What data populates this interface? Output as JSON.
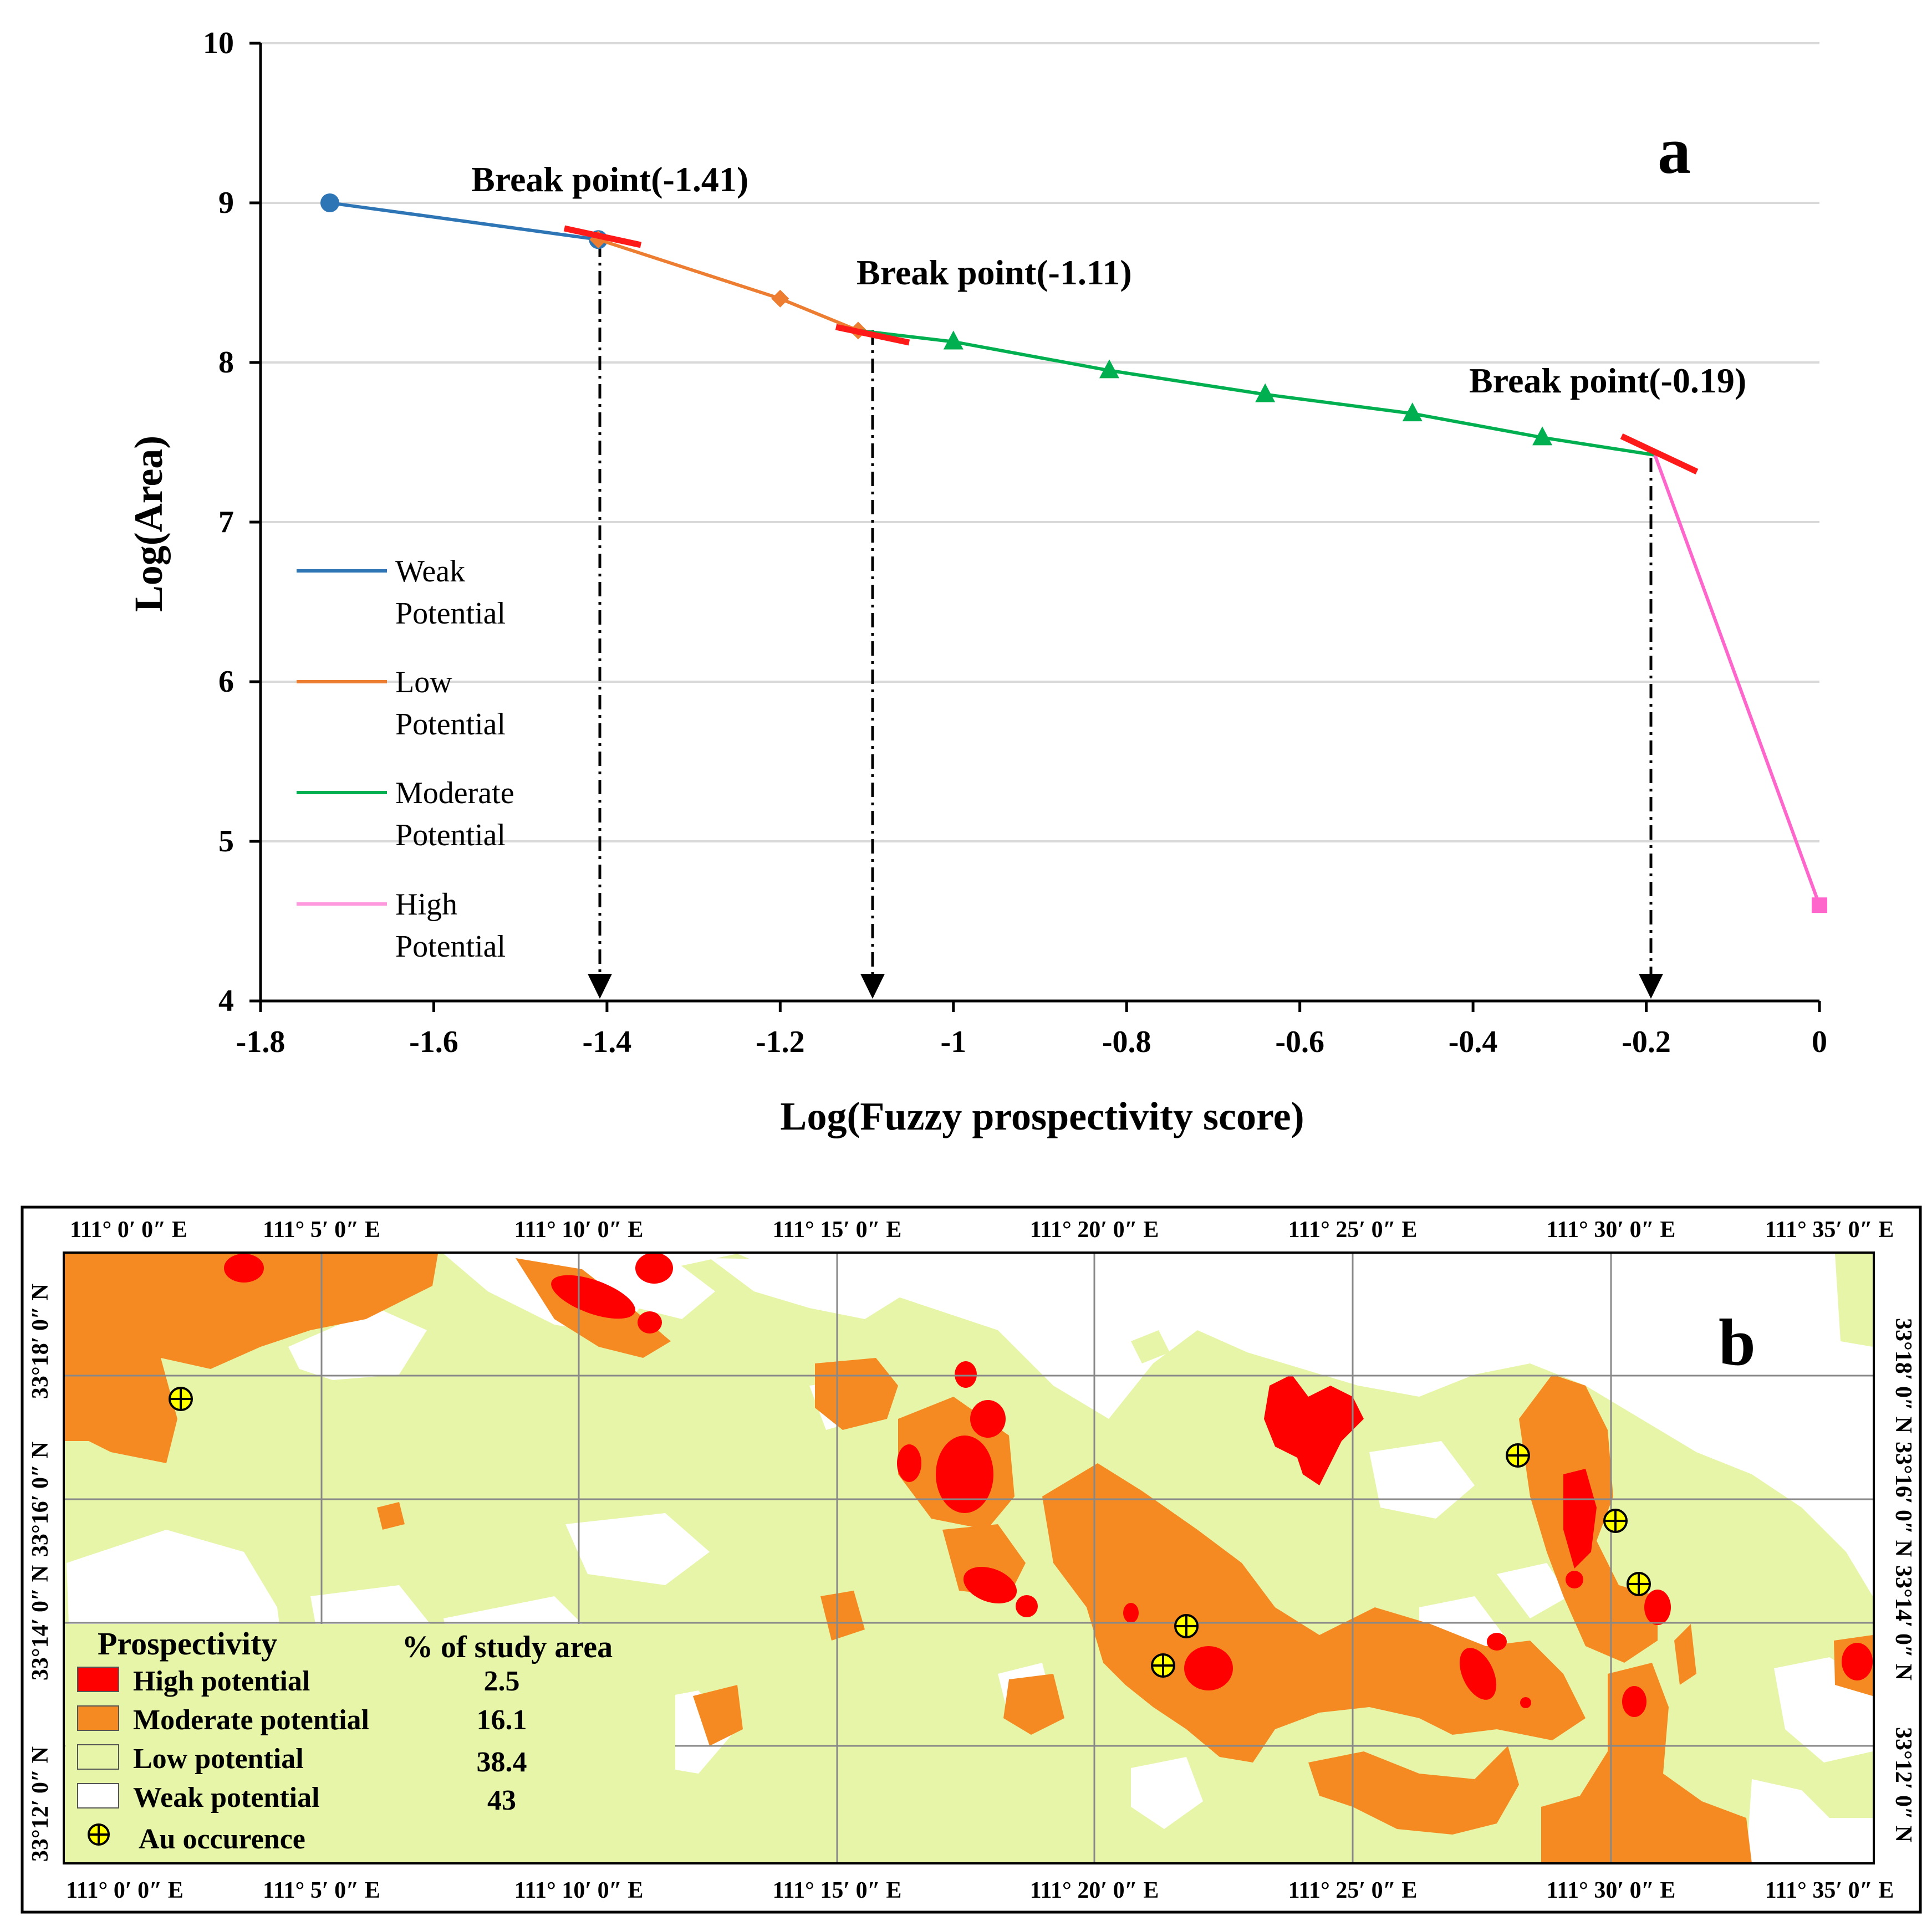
{
  "chart_data": [
    {
      "type": "line",
      "panel_label": "a",
      "xlabel": "Log(Fuzzy prospectivity score)",
      "ylabel": "Log(Area)",
      "xlim": [
        -1.8,
        0
      ],
      "ylim": [
        4,
        10
      ],
      "x_ticks": [
        "-1.8",
        "-1.6",
        "-1.4",
        "-1.2",
        "-1",
        "-0.8",
        "-0.6",
        "-0.4",
        "-0.2",
        "0"
      ],
      "x_tick_values": [
        -1.8,
        -1.6,
        -1.4,
        -1.2,
        -1.0,
        -0.8,
        -0.6,
        -0.4,
        -0.2,
        0
      ],
      "y_ticks": [
        "4",
        "5",
        "6",
        "7",
        "8",
        "9",
        "10"
      ],
      "y_tick_values": [
        4,
        5,
        6,
        7,
        8,
        9,
        10
      ],
      "grid": "horizontal",
      "series": [
        {
          "name": "Weak Potential",
          "label_lines": [
            "Weak",
            "Potential"
          ],
          "color": "#2e75b6",
          "marker": "circle",
          "x": [
            -1.72,
            -1.41
          ],
          "y": [
            9.0,
            8.77
          ]
        },
        {
          "name": "Low Potential",
          "label_lines": [
            "Low",
            "Potential"
          ],
          "color": "#ed7d31",
          "marker": "diamond",
          "x": [
            -1.41,
            -1.2,
            -1.11
          ],
          "y": [
            8.77,
            8.4,
            8.2
          ]
        },
        {
          "name": "Moderate Potential",
          "label_lines": [
            "Moderate",
            "Potential"
          ],
          "color": "#00b050",
          "marker": "triangle",
          "x": [
            -1.11,
            -1.0,
            -0.82,
            -0.64,
            -0.47,
            -0.32,
            -0.19
          ],
          "y": [
            8.2,
            8.13,
            7.95,
            7.8,
            7.68,
            7.53,
            7.42
          ]
        },
        {
          "name": "High Potential",
          "label_lines": [
            "High",
            "Potential"
          ],
          "color": "#ff66cc",
          "marker": "square",
          "x": [
            -0.19,
            0.0
          ],
          "y": [
            7.42,
            4.6
          ]
        }
      ],
      "annotations": [
        {
          "text": "Break point(-1.41)",
          "x": -1.41,
          "y": 8.77
        },
        {
          "text": "Break point(-1.11)",
          "x": -1.1,
          "y": 8.2
        },
        {
          "text": "Break point(-0.19)",
          "x": -0.19,
          "y": 7.42
        }
      ]
    },
    {
      "type": "table",
      "panel_label": "b",
      "title": "Prospectivity",
      "column_headers": [
        "Prospectivity",
        "% of study area"
      ],
      "rows": [
        {
          "class": "High potential",
          "percent": "2.5",
          "color": "#ff0000"
        },
        {
          "class": "Moderate potential",
          "percent": "16.1",
          "color": "#f68a22"
        },
        {
          "class": "Low potential",
          "percent": "38.4",
          "color": "#e6f5a8"
        },
        {
          "class": "Weak potential",
          "percent": "43",
          "color": "#ffffff"
        }
      ],
      "point_legend": "Au occurence",
      "lon_labels": [
        "111° 0′ 0″ E",
        "111° 5′ 0″ E",
        "111° 10′ 0″ E",
        "111° 15′ 0″ E",
        "111° 20′ 0″ E",
        "111° 25′ 0″ E",
        "111° 30′ 0″ E",
        "111° 35′ 0″ E"
      ],
      "lat_labels": [
        "33°18′ 0″ N",
        "33°16′ 0″ N",
        "33°14′ 0″ N",
        "33°12′ 0″ N"
      ]
    }
  ]
}
